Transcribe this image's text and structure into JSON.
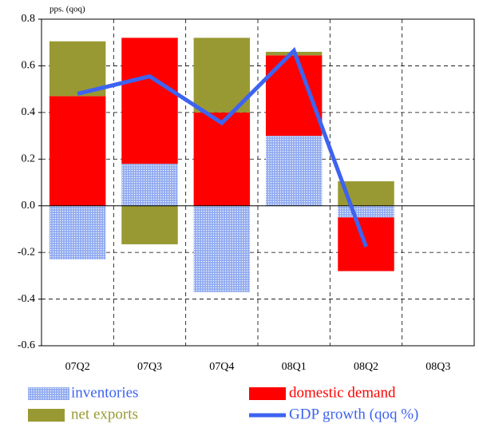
{
  "chart_data": {
    "type": "bar",
    "stacked": true,
    "y_label": "pps. (qoq)",
    "categories": [
      "07Q2",
      "07Q3",
      "07Q4",
      "08Q1",
      "08Q2",
      "08Q3"
    ],
    "series": [
      {
        "name": "inventories",
        "color": "#9fb6f2",
        "values": [
          -0.23,
          0.18,
          -0.37,
          0.3,
          -0.05,
          null
        ]
      },
      {
        "name": "domestic demand",
        "color": "#ff0000",
        "values": [
          0.47,
          0.54,
          0.4,
          0.345,
          -0.23,
          null
        ]
      },
      {
        "name": "net exports",
        "color": "#999933",
        "values": [
          0.235,
          -0.165,
          0.32,
          0.015,
          0.105,
          null
        ]
      },
      {
        "name": "GDP growth (qoq %)",
        "type": "line",
        "color": "#3d63f0",
        "values": [
          0.48,
          0.555,
          0.355,
          0.665,
          -0.175,
          null
        ]
      }
    ],
    "ylim": [
      -0.6,
      0.8
    ],
    "yticks": [
      -0.6,
      -0.4,
      -0.2,
      {
        "value": 0,
        "label": "0.0"
      },
      0.2,
      0.4,
      0.6,
      0.8
    ],
    "grid": true
  }
}
